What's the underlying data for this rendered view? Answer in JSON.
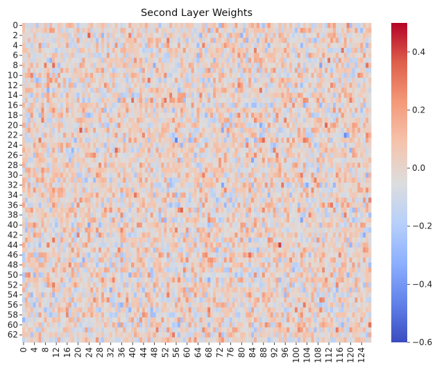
{
  "chart_data": {
    "type": "heatmap",
    "title": "Second Layer Weights",
    "xlabel": "",
    "ylabel": "",
    "n_rows": 64,
    "n_cols": 128,
    "x_tick_labels": [
      "0",
      "4",
      "8",
      "12",
      "16",
      "20",
      "24",
      "28",
      "32",
      "36",
      "40",
      "44",
      "48",
      "52",
      "56",
      "60",
      "64",
      "68",
      "72",
      "76",
      "80",
      "84",
      "88",
      "92",
      "96",
      "100",
      "104",
      "108",
      "112",
      "116",
      "120",
      "124"
    ],
    "y_tick_labels": [
      "0",
      "2",
      "4",
      "6",
      "8",
      "10",
      "12",
      "14",
      "16",
      "18",
      "20",
      "22",
      "24",
      "26",
      "28",
      "30",
      "32",
      "34",
      "36",
      "38",
      "40",
      "42",
      "44",
      "46",
      "48",
      "50",
      "52",
      "54",
      "56",
      "58",
      "60",
      "62"
    ],
    "colorbar": {
      "colormap": "coolwarm",
      "vmin": -0.6,
      "vmax": 0.5,
      "tick_labels": [
        "0.4",
        "0.2",
        "0.0",
        "−0.2",
        "−0.4",
        "−0.6"
      ],
      "tick_values": [
        0.4,
        0.2,
        0.0,
        -0.2,
        -0.4,
        -0.6
      ]
    },
    "colors": {
      "low": "#3b4cc0",
      "mid": "#dddddd",
      "high": "#b40426"
    }
  }
}
